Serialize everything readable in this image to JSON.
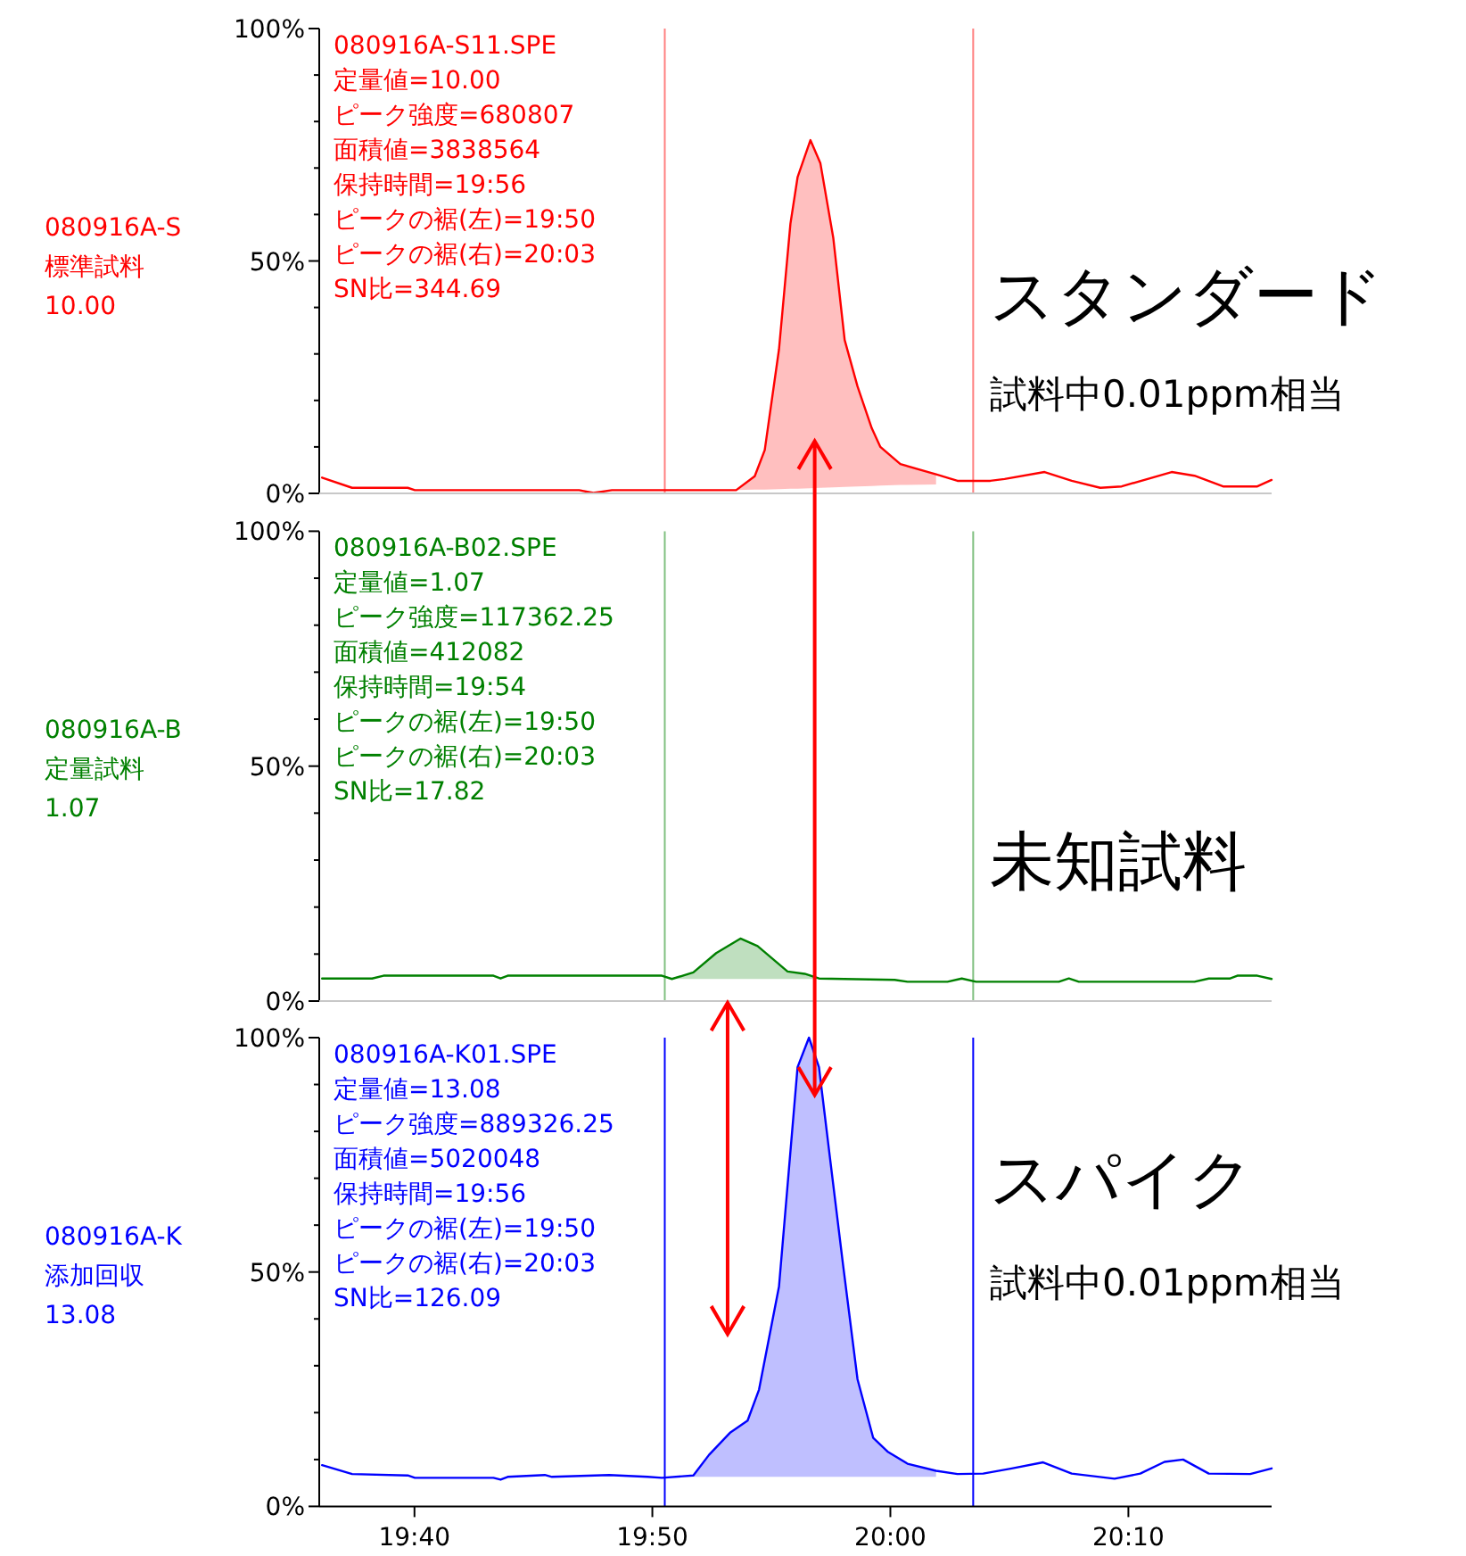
{
  "chart_data": [
    {
      "type": "line",
      "x": [
        19.602,
        19.623,
        19.662,
        19.667,
        19.782,
        19.792,
        19.805,
        19.844,
        19.892,
        19.905,
        19.912,
        19.922,
        19.93,
        19.935,
        19.944,
        19.951,
        19.96,
        19.968,
        19.977,
        19.987,
        19.993,
        20.007,
        20.032,
        20.047,
        20.07,
        20.08,
        20.108,
        20.127,
        20.147,
        20.162,
        20.197,
        20.213,
        20.233,
        20.257,
        20.267
      ],
      "series": [
        {
          "color": "#ff0000",
          "values": [
            3.4,
            1.2,
            1.2,
            0.7,
            0.7,
            0.1,
            0.7,
            0.7,
            0.7,
            3.7,
            9.3,
            31,
            58,
            68,
            76,
            71,
            55,
            33,
            23,
            14,
            10,
            6.3,
            4.1,
            2.7,
            2.7,
            3.1,
            4.6,
            2.7,
            1.2,
            1.5,
            4.6,
            3.8,
            1.5,
            1.5,
            2.9
          ],
          "upper": [
            null,
            null,
            null,
            null,
            null,
            null,
            null,
            null,
            0.7,
            3.7,
            9.3,
            31,
            58,
            68,
            76,
            71,
            55,
            33,
            23,
            14,
            10,
            6.3,
            4.1,
            null,
            null,
            null,
            null,
            null,
            null,
            null,
            null,
            null,
            null,
            null,
            null
          ],
          "lower": [
            null,
            null,
            null,
            null,
            null,
            null,
            null,
            null,
            0.7,
            0.8,
            0.8,
            0.9,
            1.0,
            1.0,
            1.1,
            1.2,
            1.3,
            1.4,
            1.5,
            1.6,
            1.7,
            1.8,
            1.9,
            null,
            null,
            null,
            null,
            null,
            null,
            null,
            null,
            null,
            null,
            null,
            null
          ]
        }
      ],
      "xlim": [
        19.6,
        20.267
      ],
      "ylim": [
        0,
        100
      ],
      "yticks": [
        {
          "value": 0,
          "label": "0%"
        },
        {
          "value": 10,
          "label": null
        },
        {
          "value": 20,
          "label": null
        },
        {
          "value": 30,
          "label": null
        },
        {
          "value": 40,
          "label": null
        },
        {
          "value": 50,
          "label": "50%"
        },
        {
          "value": 60,
          "label": null
        },
        {
          "value": 70,
          "label": null
        },
        {
          "value": 80,
          "label": null
        },
        {
          "value": 90,
          "label": null
        },
        {
          "value": 100,
          "label": "100%"
        }
      ],
      "tick_labels": "y",
      "ref_lines": [
        {
          "axis": "x",
          "value": 19.842,
          "color": "#ff8080"
        },
        {
          "axis": "x",
          "value": 20.058,
          "color": "#ff8080"
        }
      ],
      "annotations": [
        "080916A-S\n標準試料\n10.00",
        "080916A-S11.SPE\n定量値=10.00\nピーク強度=680807\n面積値=3838564\n保持時間=19:56\nピークの裾(左)=19:50\nピークの裾(右)=20:03\nSN比=344.69",
        "スタンダード",
        "試料中0.01ppm相当"
      ]
    },
    {
      "type": "line",
      "x": [
        19.602,
        19.637,
        19.645,
        19.722,
        19.727,
        19.732,
        19.84,
        19.847,
        19.862,
        19.878,
        19.895,
        19.907,
        19.928,
        19.94,
        19.95,
        20.003,
        20.012,
        20.04,
        20.05,
        20.06,
        20.118,
        20.125,
        20.132,
        20.213,
        20.223,
        20.238,
        20.243,
        20.257,
        20.267
      ],
      "series": [
        {
          "color": "#008000",
          "values": [
            4.8,
            4.8,
            5.4,
            5.4,
            4.8,
            5.4,
            5.4,
            4.7,
            6.1,
            10.2,
            13.3,
            11.7,
            6.3,
            5.8,
            4.8,
            4.5,
            4.1,
            4.1,
            4.8,
            4.1,
            4.1,
            4.8,
            4.1,
            4.1,
            4.8,
            4.8,
            5.4,
            5.4,
            4.7
          ],
          "upper": [
            null,
            null,
            null,
            null,
            null,
            null,
            null,
            4.7,
            6.1,
            10.2,
            13.3,
            11.7,
            6.3,
            5.8,
            4.8,
            null,
            null,
            null,
            null,
            null,
            null,
            null,
            null,
            null,
            null,
            null,
            null,
            null,
            null
          ],
          "lower": [
            null,
            null,
            null,
            null,
            null,
            null,
            null,
            4.7,
            4.7,
            4.7,
            4.7,
            4.7,
            4.7,
            4.7,
            4.7,
            null,
            null,
            null,
            null,
            null,
            null,
            null,
            null,
            null,
            null,
            null,
            null,
            null,
            null
          ]
        }
      ],
      "xlim": [
        19.6,
        20.267
      ],
      "ylim": [
        0,
        100
      ],
      "yticks": [
        {
          "value": 0,
          "label": "0%"
        },
        {
          "value": 10,
          "label": null
        },
        {
          "value": 20,
          "label": null
        },
        {
          "value": 30,
          "label": null
        },
        {
          "value": 40,
          "label": null
        },
        {
          "value": 50,
          "label": "50%"
        },
        {
          "value": 60,
          "label": null
        },
        {
          "value": 70,
          "label": null
        },
        {
          "value": 80,
          "label": null
        },
        {
          "value": 90,
          "label": null
        },
        {
          "value": 100,
          "label": "100%"
        }
      ],
      "tick_labels": "y",
      "ref_lines": [
        {
          "axis": "x",
          "value": 19.842,
          "color": "#80c080"
        },
        {
          "axis": "x",
          "value": 20.058,
          "color": "#80c080"
        }
      ],
      "annotations": [
        "080916A-B\n定量試料\n1.07",
        "080916A-B02.SPE\n定量値=1.07\nピーク強度=117362.25\n面積値=412082\n保持時間=19:54\nピークの裾(左)=19:50\nピークの裾(右)=20:03\nSN比=17.82",
        "未知試料"
      ]
    },
    {
      "type": "line",
      "x": [
        19.602,
        19.623,
        19.662,
        19.667,
        19.722,
        19.727,
        19.732,
        19.758,
        19.763,
        19.803,
        19.83,
        19.84,
        19.862,
        19.873,
        19.888,
        19.9,
        19.908,
        19.922,
        19.935,
        19.943,
        19.95,
        19.957,
        19.967,
        19.977,
        19.988,
        19.998,
        20.012,
        20.032,
        20.047,
        20.065,
        20.085,
        20.107,
        20.127,
        20.157,
        20.175,
        20.192,
        20.205,
        20.223,
        20.252,
        20.267
      ],
      "series": [
        {
          "color": "#0000ff",
          "values": [
            8.8,
            6.9,
            6.6,
            6.1,
            6.1,
            5.7,
            6.3,
            6.7,
            6.3,
            6.7,
            6.3,
            6.1,
            6.6,
            11.0,
            15.8,
            18.3,
            24.9,
            46.9,
            93.7,
            100,
            93.7,
            76.1,
            51.2,
            27.1,
            14.6,
            11.7,
            9.1,
            7.6,
            6.9,
            7.0,
            8.1,
            9.4,
            7.0,
            5.9,
            7.0,
            9.5,
            10.0,
            7.0,
            6.9,
            8.1
          ],
          "upper": [
            null,
            null,
            null,
            null,
            null,
            null,
            null,
            null,
            null,
            null,
            null,
            null,
            6.6,
            11.0,
            15.8,
            18.3,
            24.9,
            46.9,
            93.7,
            100,
            93.7,
            76.1,
            51.2,
            27.1,
            14.6,
            11.7,
            9.1,
            7.6,
            null,
            null,
            null,
            null,
            null,
            null,
            null,
            null,
            null,
            null,
            null,
            null
          ],
          "lower": [
            null,
            null,
            null,
            null,
            null,
            null,
            null,
            null,
            null,
            null,
            null,
            null,
            6.3,
            6.3,
            6.3,
            6.3,
            6.3,
            6.3,
            6.3,
            6.3,
            6.3,
            6.3,
            6.3,
            6.3,
            6.3,
            6.3,
            6.3,
            6.3,
            null,
            null,
            null,
            null,
            null,
            null,
            null,
            null,
            null,
            null,
            null,
            null
          ]
        }
      ],
      "xlim": [
        19.6,
        20.267
      ],
      "ylim": [
        0,
        100
      ],
      "xticks": [
        {
          "value": 19.6667,
          "label": "19:40"
        },
        {
          "value": 19.8333,
          "label": "19:50"
        },
        {
          "value": 20,
          "label": "20:00"
        },
        {
          "value": 20.1667,
          "label": "20:10"
        }
      ],
      "yticks": [
        {
          "value": 0,
          "label": "0%"
        },
        {
          "value": 10,
          "label": null
        },
        {
          "value": 20,
          "label": null
        },
        {
          "value": 30,
          "label": null
        },
        {
          "value": 40,
          "label": null
        },
        {
          "value": 50,
          "label": "50%"
        },
        {
          "value": 60,
          "label": null
        },
        {
          "value": 70,
          "label": null
        },
        {
          "value": 80,
          "label": null
        },
        {
          "value": 90,
          "label": null
        },
        {
          "value": 100,
          "label": "100%"
        }
      ],
      "ref_lines": [
        {
          "axis": "x",
          "value": 19.842,
          "color": "#0000ff"
        },
        {
          "axis": "x",
          "value": 20.058,
          "color": "#0000ff"
        }
      ],
      "annotations": [
        "080916A-K\n添加回収\n13.08",
        "080916A-K01.SPE\n定量値=13.08\nピーク強度=889326.25\n面積値=5020048\n保持時間=19:56\nピークの裾(左)=19:50\nピークの裾(右)=20:03\nSN比=126.09",
        "スパイク",
        "試料中0.01ppm相当"
      ]
    }
  ]
}
